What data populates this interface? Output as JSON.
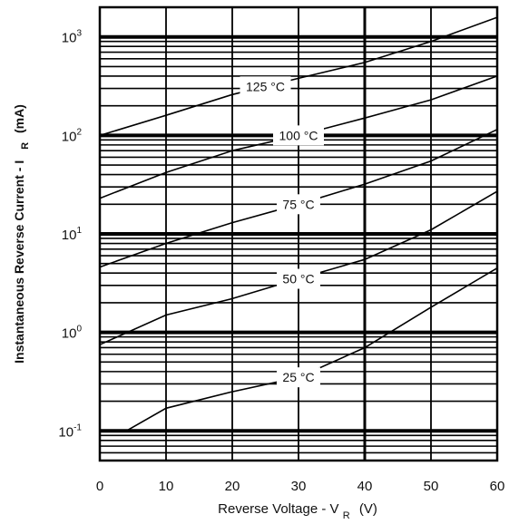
{
  "chart_data": {
    "type": "line",
    "title": "",
    "xlabel": "Reverse Voltage - V",
    "xlabel_subscript": "R",
    "xlabel_unit": "(V)",
    "ylabel": "Instantaneous Reverse Current - I",
    "ylabel_subscript": "R",
    "ylabel_unit": "(mA)",
    "xlim": [
      0,
      60
    ],
    "ylim": [
      0.05,
      2000
    ],
    "yscale": "log",
    "grid": true,
    "x_ticks": [
      {
        "value": 0,
        "label": "0"
      },
      {
        "value": 10,
        "label": "10"
      },
      {
        "value": 20,
        "label": "20"
      },
      {
        "value": 30,
        "label": "30"
      },
      {
        "value": 40,
        "label": "40"
      },
      {
        "value": 50,
        "label": "50"
      },
      {
        "value": 60,
        "label": "60"
      }
    ],
    "y_ticks": [
      {
        "value": 0.1,
        "base": "10",
        "exp": "-1"
      },
      {
        "value": 1,
        "base": "10",
        "exp": "0"
      },
      {
        "value": 10,
        "base": "10",
        "exp": "1"
      },
      {
        "value": 100,
        "base": "10",
        "exp": "2"
      },
      {
        "value": 1000,
        "base": "10",
        "exp": "3"
      }
    ],
    "series": [
      {
        "name": "125 °C",
        "x": [
          0,
          10,
          20,
          30,
          40,
          50,
          60
        ],
        "y": [
          100,
          160,
          260,
          380,
          550,
          900,
          1580
        ],
        "label_at": 25
      },
      {
        "name": "100 °C",
        "x": [
          0,
          10,
          20,
          30,
          40,
          50,
          60
        ],
        "y": [
          23,
          42,
          70,
          100,
          150,
          230,
          400
        ],
        "label_at": 30
      },
      {
        "name": "75 °C",
        "x": [
          0,
          10,
          20,
          30,
          40,
          50,
          60
        ],
        "y": [
          4.6,
          8,
          13,
          20,
          32,
          55,
          115
        ],
        "label_at": 30
      },
      {
        "name": "50 °C",
        "x": [
          0,
          10,
          20,
          30,
          40,
          50,
          60
        ],
        "y": [
          0.75,
          1.5,
          2.2,
          3.5,
          5.5,
          11,
          27
        ],
        "label_at": 30
      },
      {
        "name": "25 °C",
        "x": [
          4,
          10,
          20,
          30,
          40,
          50,
          60
        ],
        "y": [
          0.1,
          0.17,
          0.25,
          0.35,
          0.7,
          1.8,
          4.5
        ],
        "label_at": 30
      }
    ]
  }
}
